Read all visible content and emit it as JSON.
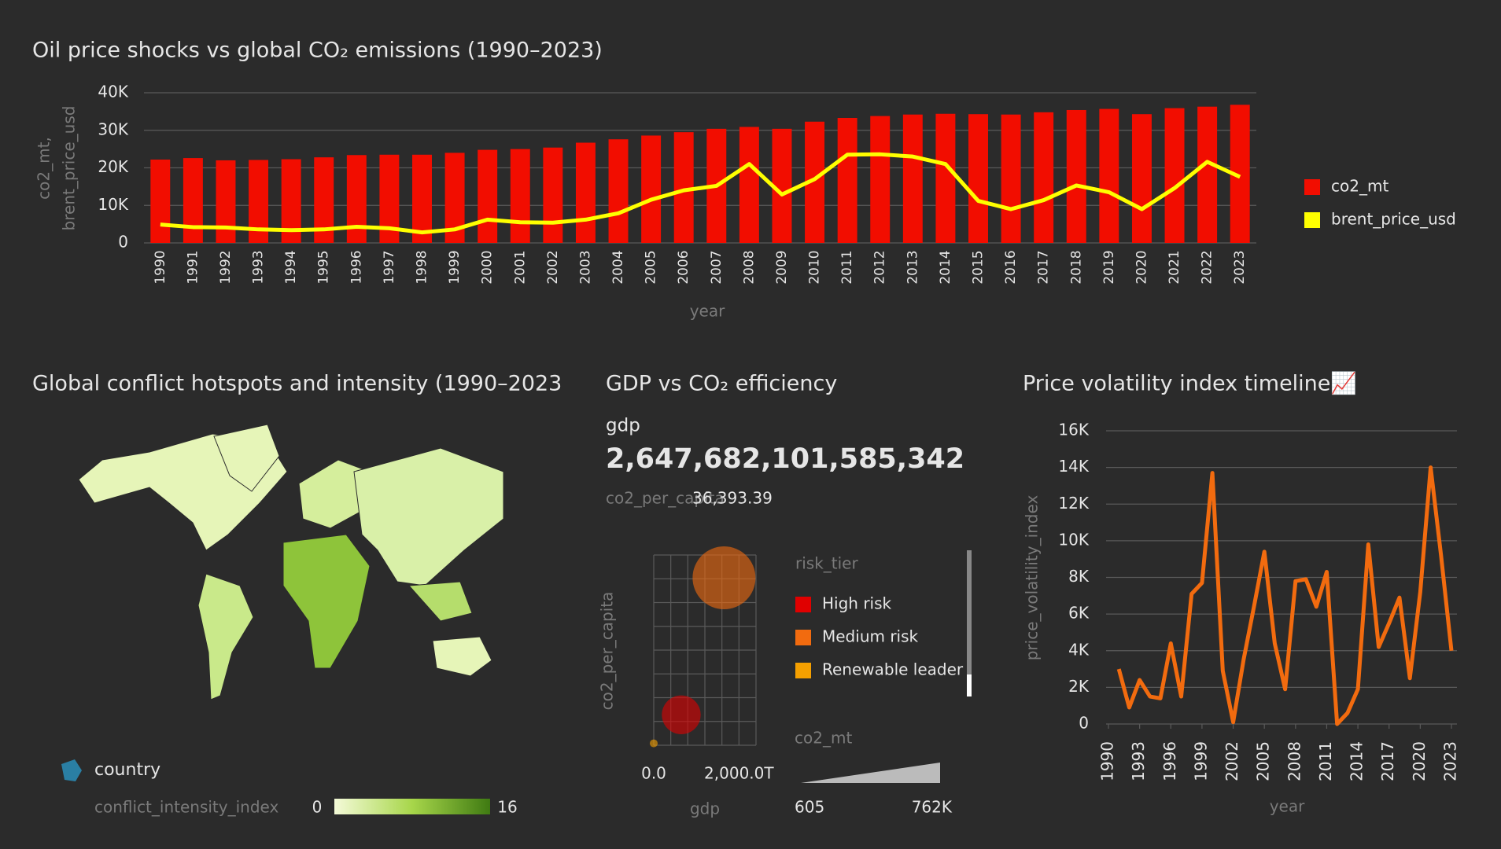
{
  "chart_data": [
    {
      "type": "bar-line",
      "title": "Oil price shocks vs global CO₂ emissions (1990–2023)",
      "categories": [
        "1990",
        "1991",
        "1992",
        "1993",
        "1994",
        "1995",
        "1996",
        "1997",
        "1998",
        "1999",
        "2000",
        "2001",
        "2002",
        "2003",
        "2004",
        "2005",
        "2006",
        "2007",
        "2008",
        "2009",
        "2010",
        "2011",
        "2012",
        "2013",
        "2014",
        "2015",
        "2016",
        "2017",
        "2018",
        "2019",
        "2020",
        "2021",
        "2022",
        "2023"
      ],
      "series": [
        {
          "name": "co2_mt",
          "color": "#f20d00",
          "kind": "bar",
          "values": [
            22200,
            22600,
            22000,
            22100,
            22300,
            22800,
            23400,
            23500,
            23500,
            24000,
            24800,
            25000,
            25400,
            26700,
            27600,
            28600,
            29500,
            30400,
            30900,
            30400,
            32300,
            33300,
            33800,
            34200,
            34400,
            34300,
            34200,
            34800,
            35400,
            35700,
            34300,
            35900,
            36300,
            36800
          ]
        },
        {
          "name": "brent_price_usd",
          "color": "#ffff00",
          "kind": "line",
          "values": [
            4900,
            4200,
            4100,
            3600,
            3400,
            3600,
            4300,
            3900,
            2800,
            3600,
            6200,
            5500,
            5400,
            6200,
            7900,
            11500,
            14000,
            15200,
            21000,
            12900,
            17000,
            23500,
            23600,
            23000,
            21000,
            11200,
            9000,
            11400,
            15300,
            13500,
            9000,
            14600,
            21600,
            17600
          ]
        }
      ],
      "ylim": [
        0,
        40000
      ],
      "yticks": [
        0,
        {
          "value": 10000,
          "label": "10K"
        },
        {
          "value": 20000,
          "label": "20K"
        },
        {
          "value": 30000,
          "label": "30K"
        },
        {
          "value": 40000,
          "label": "40K"
        }
      ],
      "ylabel": [
        "co2_mt,",
        "brent_price_usd"
      ],
      "xlabel": "year",
      "grid": true,
      "legend": "right"
    },
    {
      "type": "choropleth",
      "title": "Global conflict hotspots and intensity (1990–2023",
      "legend_label": "country",
      "colorbar": {
        "label": "conflict_intensity_index",
        "lim": [
          0,
          16
        ],
        "ticks": [
          0,
          16
        ]
      }
    },
    {
      "type": "bubble",
      "title": "GDP vs CO₂ efficiency",
      "kpi": {
        "label": "gdp",
        "value": "2,647,682,101,585,342",
        "sub_label": "co2_per_capita",
        "sub_value": "36,393.39"
      },
      "xlabel": "gdp",
      "ylabel": "co2_per_capita",
      "xlim": [
        0,
        2400
      ],
      "ylim": [
        0,
        100
      ],
      "xticks": [
        {
          "value": 0,
          "label": "0.0"
        },
        {
          "value": 2000,
          "label": "2,000.0T"
        }
      ],
      "legend_title": "risk_tier",
      "series": [
        {
          "name": "High risk",
          "color": "#e00000",
          "x": [
            646
          ],
          "values": [
            16
          ],
          "sizes": [
            252000
          ]
        },
        {
          "name": "Medium risk",
          "color": "#f26b0f",
          "x": [
            1650
          ],
          "values": [
            88
          ],
          "sizes": [
            762000
          ]
        },
        {
          "name": "Renewable leader",
          "color": "#f5a000",
          "x": [
            0
          ],
          "values": [
            1
          ],
          "sizes": [
            605
          ]
        }
      ],
      "size_legend": {
        "label": "co2_mt",
        "ticks": [
          605,
          {
            "value": 762000,
            "label": "762K"
          }
        ]
      }
    },
    {
      "type": "line",
      "title": "Price volatility index timeline📈",
      "x": [
        1991,
        1992,
        1993,
        1994,
        1995,
        1996,
        1997,
        1998,
        1999,
        2000,
        2001,
        2002,
        2003,
        2004,
        2005,
        2006,
        2007,
        2008,
        2009,
        2010,
        2011,
        2012,
        2013,
        2014,
        2015,
        2016,
        2017,
        2018,
        2019,
        2020,
        2021,
        2022,
        2023
      ],
      "series": [
        {
          "name": "price_volatility_index",
          "color": "#f26b0f",
          "values": [
            3000,
            900,
            2400,
            1500,
            1400,
            4400,
            1500,
            7100,
            7700,
            13700,
            2900,
            100,
            3500,
            6400,
            9400,
            4400,
            1900,
            7800,
            7900,
            6400,
            8300,
            0,
            600,
            1900,
            9800,
            4200,
            5500,
            6900,
            2500,
            7200,
            14000,
            9200,
            4000
          ]
        }
      ],
      "xlim": [
        1990,
        2023
      ],
      "xticks": [
        1990,
        1993,
        1996,
        1999,
        2002,
        2005,
        2008,
        2011,
        2014,
        2017,
        2020,
        2023
      ],
      "ylim": [
        0,
        16000
      ],
      "yticks": [
        0,
        {
          "value": 2000,
          "label": "2K"
        },
        {
          "value": 4000,
          "label": "4K"
        },
        {
          "value": 6000,
          "label": "6K"
        },
        {
          "value": 8000,
          "label": "8K"
        },
        {
          "value": 10000,
          "label": "10K"
        },
        {
          "value": 12000,
          "label": "12K"
        },
        {
          "value": 14000,
          "label": "14K"
        },
        {
          "value": 16000,
          "label": "16K"
        }
      ],
      "xlabel": "year",
      "ylabel": "price_volatility_index",
      "grid": true
    }
  ]
}
